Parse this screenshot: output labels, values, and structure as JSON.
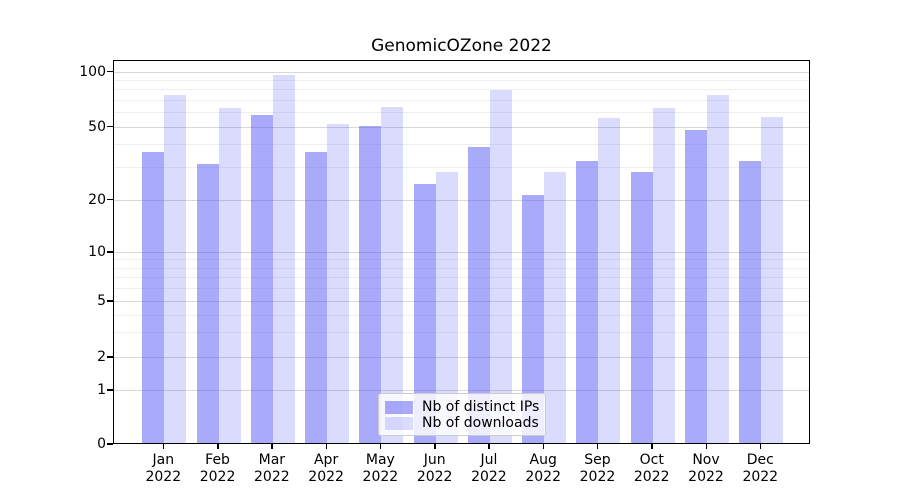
{
  "title": "GenomicOZone 2022",
  "colors": {
    "ips": "rgba(77,77,246,0.48)",
    "downloads": "rgba(77,77,246,0.20)",
    "grid_major": "#d8d8d8",
    "grid_minor": "#efefef",
    "spine": "#000000"
  },
  "legend": {
    "items": [
      {
        "label": "Nb of distinct IPs",
        "color_key": "ips"
      },
      {
        "label": "Nb of downloads",
        "color_key": "downloads"
      }
    ]
  },
  "axes": {
    "y_major_ticks": [
      {
        "value": 100,
        "label": "100"
      },
      {
        "value": 50,
        "label": "50"
      },
      {
        "value": 20,
        "label": "20"
      },
      {
        "value": 10,
        "label": "10"
      },
      {
        "value": 5,
        "label": "5"
      },
      {
        "value": 2,
        "label": "2"
      },
      {
        "value": 1,
        "label": "1"
      },
      {
        "value": 0,
        "label": "0"
      }
    ],
    "y_minor_ticks": [
      3,
      4,
      6,
      7,
      8,
      9,
      30,
      40,
      60,
      70,
      80,
      90
    ],
    "x_ticks": [
      {
        "line1": "Jan",
        "line2": "2022"
      },
      {
        "line1": "Feb",
        "line2": "2022"
      },
      {
        "line1": "Mar",
        "line2": "2022"
      },
      {
        "line1": "Apr",
        "line2": "2022"
      },
      {
        "line1": "May",
        "line2": "2022"
      },
      {
        "line1": "Jun",
        "line2": "2022"
      },
      {
        "line1": "Jul",
        "line2": "2022"
      },
      {
        "line1": "Aug",
        "line2": "2022"
      },
      {
        "line1": "Sep",
        "line2": "2022"
      },
      {
        "line1": "Oct",
        "line2": "2022"
      },
      {
        "line1": "Nov",
        "line2": "2022"
      },
      {
        "line1": "Dec",
        "line2": "2022"
      }
    ]
  },
  "chart_data": {
    "type": "bar",
    "title": "GenomicOZone 2022",
    "categories": [
      "Jan 2022",
      "Feb 2022",
      "Mar 2022",
      "Apr 2022",
      "May 2022",
      "Jun 2022",
      "Jul 2022",
      "Aug 2022",
      "Sep 2022",
      "Oct 2022",
      "Nov 2022",
      "Dec 2022"
    ],
    "series": [
      {
        "name": "Nb of distinct IPs",
        "values": [
          36,
          31,
          57,
          36,
          50,
          24,
          38,
          21,
          32,
          28,
          47,
          32
        ]
      },
      {
        "name": "Nb of downloads",
        "values": [
          73,
          62,
          94,
          51,
          63,
          28,
          78,
          28,
          55,
          62,
          73,
          56
        ]
      }
    ],
    "xlabel": "",
    "ylabel": "",
    "yscale": "symlog",
    "y_axis_ticks": [
      0,
      1,
      2,
      5,
      10,
      20,
      50,
      100
    ],
    "ylim": [
      0,
      110
    ],
    "grid": true,
    "legend_position": "lower center"
  }
}
